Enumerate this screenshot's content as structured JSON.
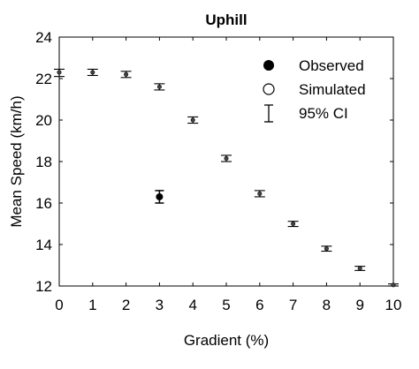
{
  "chart_data": {
    "type": "scatter",
    "title": "Uphill",
    "xlabel": "Gradient (%)",
    "ylabel": "Mean Speed (km/h)",
    "xlim": [
      0,
      10
    ],
    "ylim": [
      12,
      24
    ],
    "xticks": [
      0,
      1,
      2,
      3,
      4,
      5,
      6,
      7,
      8,
      9,
      10
    ],
    "yticks": [
      12,
      14,
      16,
      18,
      20,
      22,
      24
    ],
    "grid": false,
    "legend_position": "top-right",
    "legend": {
      "observed_label": "Observed",
      "simulated_label": "Simulated",
      "ci_label": "95% CI"
    },
    "series": [
      {
        "name": "Observed",
        "marker": "filled-circle",
        "points": [
          {
            "x": 3,
            "y": 16.3,
            "ci_low": 16.0,
            "ci_high": 16.6
          }
        ]
      },
      {
        "name": "Simulated",
        "marker": "small-circle",
        "points": [
          {
            "x": 0,
            "y": 22.3,
            "ci_low": 22.1,
            "ci_high": 22.45
          },
          {
            "x": 1,
            "y": 22.3,
            "ci_low": 22.15,
            "ci_high": 22.45
          },
          {
            "x": 2,
            "y": 22.2,
            "ci_low": 22.05,
            "ci_high": 22.35
          },
          {
            "x": 3,
            "y": 21.6,
            "ci_low": 21.45,
            "ci_high": 21.75
          },
          {
            "x": 4,
            "y": 20.0,
            "ci_low": 19.85,
            "ci_high": 20.15
          },
          {
            "x": 5,
            "y": 18.15,
            "ci_low": 18.0,
            "ci_high": 18.3
          },
          {
            "x": 6,
            "y": 16.45,
            "ci_low": 16.3,
            "ci_high": 16.6
          },
          {
            "x": 7,
            "y": 15.0,
            "ci_low": 14.87,
            "ci_high": 15.12
          },
          {
            "x": 8,
            "y": 13.8,
            "ci_low": 13.68,
            "ci_high": 13.92
          },
          {
            "x": 9,
            "y": 12.85,
            "ci_low": 12.75,
            "ci_high": 12.95
          },
          {
            "x": 10,
            "y": 12.05,
            "ci_low": 12.0,
            "ci_high": 12.1
          }
        ]
      }
    ]
  }
}
